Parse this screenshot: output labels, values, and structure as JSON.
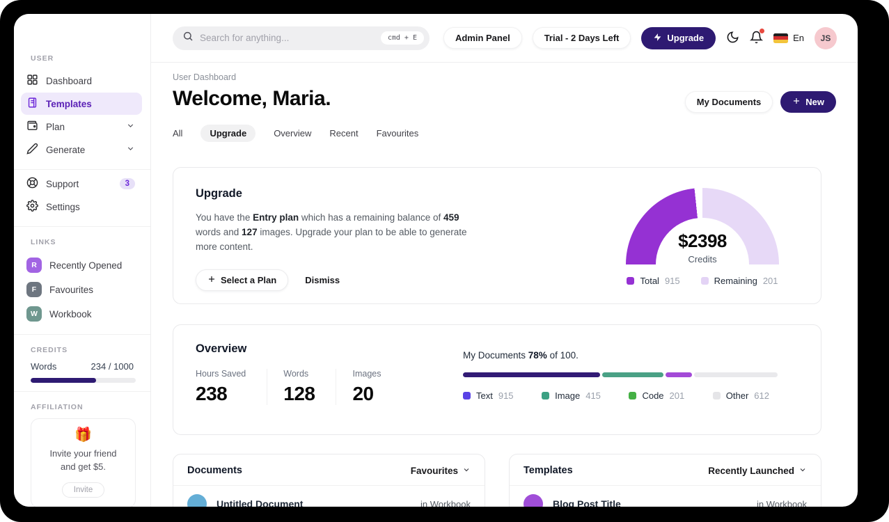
{
  "sidebar": {
    "sections": {
      "user": "USER",
      "links": "LINKS",
      "credits": "CREDITS",
      "affiliation": "AFFILIATION"
    },
    "user_items": [
      {
        "label": "Dashboard"
      },
      {
        "label": "Templates"
      },
      {
        "label": "Plan"
      },
      {
        "label": "Generate"
      }
    ],
    "secondary_items": [
      {
        "label": "Support",
        "badge": "3"
      },
      {
        "label": "Settings"
      }
    ],
    "links": [
      {
        "initial": "R",
        "label": "Recently Opened",
        "color": "#a264e3"
      },
      {
        "initial": "F",
        "label": "Favourites",
        "color": "#6e7680"
      },
      {
        "initial": "W",
        "label": "Workbook",
        "color": "#6f978f"
      }
    ],
    "credits": {
      "label": "Words",
      "value": "234 / 1000",
      "bar_color": "#2e1a72",
      "bar_width": "62%"
    },
    "affiliation": {
      "emoji": "🎁",
      "line1": "Invite your friend",
      "line2": "and get $5.",
      "button": "Invite"
    }
  },
  "topbar": {
    "search_placeholder": "Search for anything...",
    "shortcut": "cmd + E",
    "admin_panel": "Admin Panel",
    "trial": "Trial - 2 Days Left",
    "upgrade": "Upgrade",
    "language": "En",
    "avatar": "JS"
  },
  "header": {
    "breadcrumb": "User Dashboard",
    "title": "Welcome, Maria.",
    "my_documents": "My Documents",
    "new": "New",
    "tabs": [
      {
        "label": "All"
      },
      {
        "label": "Upgrade"
      },
      {
        "label": "Overview"
      },
      {
        "label": "Recent"
      },
      {
        "label": "Favourites"
      }
    ]
  },
  "upgrade_card": {
    "title": "Upgrade",
    "body": {
      "t1": "You have the ",
      "b1": "Entry plan",
      "t2": " which has a remaining balance of ",
      "b2": "459",
      "t3": " words and ",
      "b3": "127",
      "t4": " images. Upgrade your plan to be able to generate more content."
    },
    "select_plan": "Select a Plan",
    "dismiss": "Dismiss",
    "gauge": {
      "value": "$2398",
      "label": "Credits",
      "split_deg": 87,
      "total_color": "#9531d3",
      "remaining_color": "#e7d9f7",
      "legend": [
        {
          "label": "Total",
          "value": "915",
          "color": "#9531d3"
        },
        {
          "label": "Remaining",
          "value": "201",
          "color": "#e3d3f5"
        }
      ]
    }
  },
  "overview_card": {
    "title": "Overview",
    "stats": [
      {
        "label": "Hours Saved",
        "value": "238"
      },
      {
        "label": "Words",
        "value": "128"
      },
      {
        "label": "Images",
        "value": "20"
      }
    ],
    "docs_line": {
      "t1": "My Documents ",
      "pct": "78%",
      "t2": " of 100."
    },
    "bar": {
      "track_color": "#e9e9ec",
      "segments": [
        {
          "color": "#321b75",
          "width": "43.5%"
        },
        {
          "color": "#4aa185",
          "width": "19.5%"
        },
        {
          "color": "#a34ad7",
          "width": "8.5%"
        }
      ]
    },
    "legend": [
      {
        "label": "Text",
        "value": "915",
        "color": "#5a43e6"
      },
      {
        "label": "Image",
        "value": "415",
        "color": "#3ba183"
      },
      {
        "label": "Code",
        "value": "201",
        "color": "#44b044"
      },
      {
        "label": "Other",
        "value": "612",
        "color": "#e5e5e8"
      }
    ]
  },
  "documents_card": {
    "title": "Documents",
    "filter": "Favourites",
    "rows": [
      {
        "name": "Untitled Document",
        "location": "in Workbook",
        "avatar_color": "#64aed6"
      }
    ]
  },
  "templates_card": {
    "title": "Templates",
    "filter": "Recently Launched",
    "rows": [
      {
        "name": "Blog Post Title",
        "location": "in Workbook",
        "avatar_color": "#a04ed8"
      }
    ]
  }
}
